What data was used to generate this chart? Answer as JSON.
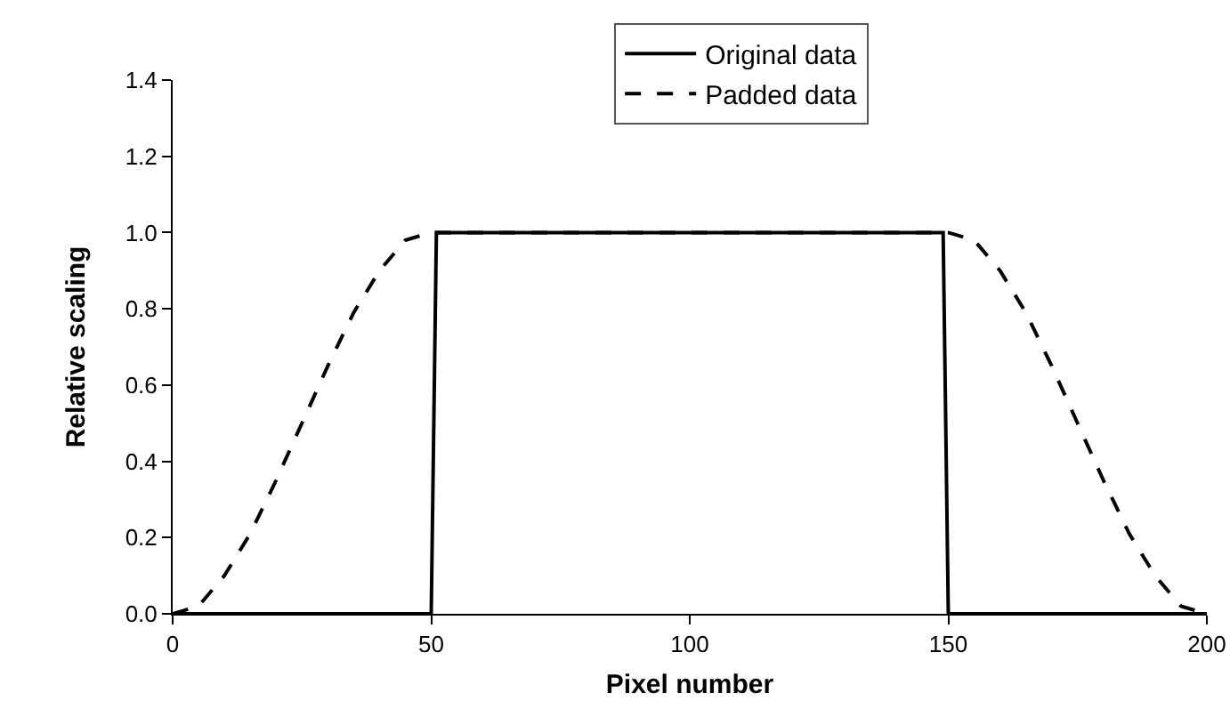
{
  "chart_data": {
    "type": "line",
    "xlabel": "Pixel number",
    "ylabel": "Relative scaling",
    "xlim": [
      0,
      200
    ],
    "xticks": [
      0,
      50,
      100,
      150,
      200
    ],
    "ylim": [
      0,
      1.4
    ],
    "yticks": [
      {
        "value": 0,
        "label": "0.0"
      },
      {
        "value": 0.2,
        "label": "0.2"
      },
      {
        "value": 0.4,
        "label": "0.4"
      },
      {
        "value": 0.6,
        "label": "0.6"
      },
      {
        "value": 0.8,
        "label": "0.8"
      },
      {
        "value": 1,
        "label": "1.0"
      },
      {
        "value": 1.2,
        "label": "1.2"
      },
      {
        "value": 1.4,
        "label": "1.4"
      }
    ],
    "grid": false,
    "legend": "top",
    "marker": "none",
    "series": [
      {
        "name": "Original data",
        "color": "#000000",
        "line_style": "solid",
        "x": [
          0,
          50,
          51,
          149,
          150,
          200
        ],
        "values": [
          0,
          0,
          1,
          1,
          0,
          0
        ]
      },
      {
        "name": "Padded data",
        "color": "#000000",
        "line_style": "dashed",
        "x": [
          0,
          5,
          10,
          15,
          20,
          25,
          30,
          35,
          40,
          45,
          50,
          150,
          155,
          160,
          165,
          170,
          175,
          180,
          185,
          190,
          195,
          200
        ],
        "values": [
          0,
          0.02,
          0.1,
          0.21,
          0.35,
          0.5,
          0.65,
          0.79,
          0.9,
          0.98,
          1,
          1,
          0.98,
          0.9,
          0.79,
          0.65,
          0.5,
          0.35,
          0.21,
          0.1,
          0.02,
          0
        ]
      }
    ]
  }
}
